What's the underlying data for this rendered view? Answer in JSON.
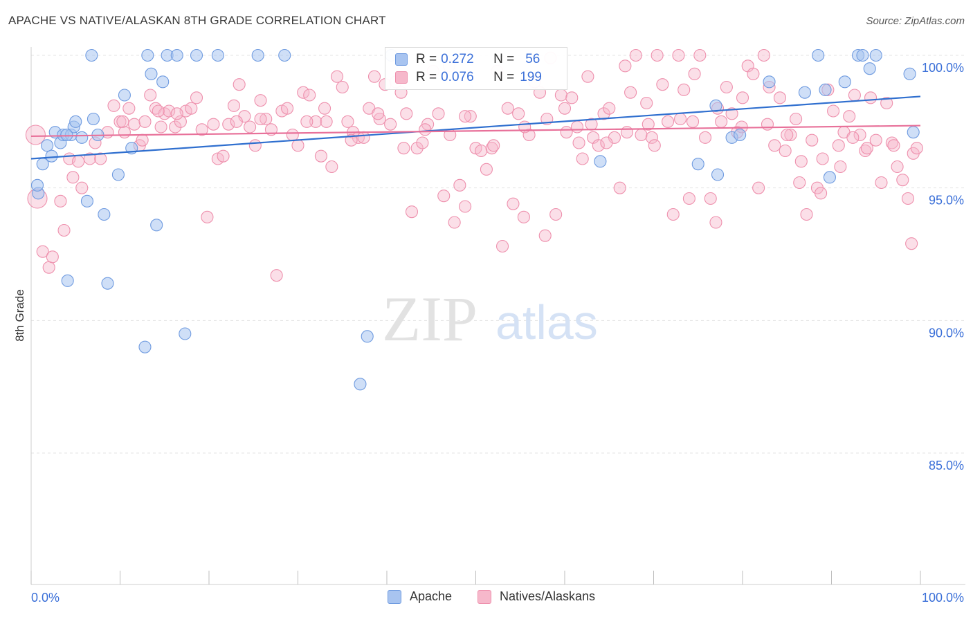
{
  "title": "APACHE VS NATIVE/ALASKAN 8TH GRADE CORRELATION CHART",
  "source": "Source: ZipAtlas.com",
  "watermark": {
    "zip": "ZIP",
    "atlas": "atlas"
  },
  "legend": {
    "rows": [
      {
        "r_label": "R =",
        "r_value": "0.272",
        "n_label": "N =",
        "n_value": "56"
      },
      {
        "r_label": "R =",
        "r_value": "0.076",
        "n_label": "N =",
        "n_value": "199"
      }
    ]
  },
  "bottom_legend": {
    "apache": "Apache",
    "natives": "Natives/Alaskans"
  },
  "colors": {
    "apache_fill": "#a8c4f0",
    "apache_stroke": "#6f9be0",
    "apache_line": "#2f6fcf",
    "natives_fill": "#f6b8cb",
    "natives_stroke": "#ee90ad",
    "natives_line": "#e8719a",
    "tick_label": "#3a6fd8",
    "grid": "#e3e3e3"
  },
  "chart_data": {
    "type": "scatter",
    "title": "APACHE VS NATIVE/ALASKAN 8TH GRADE CORRELATION CHART",
    "ylabel": "8th Grade",
    "xlabel": "",
    "x_tick_labels": [
      "0.0%",
      "100.0%"
    ],
    "y_tick_labels": [
      "100.0%",
      "95.0%",
      "90.0%",
      "85.0%"
    ],
    "y_ticks": [
      100,
      95,
      90,
      85
    ],
    "xlim": [
      0,
      100
    ],
    "ylim": [
      80.5,
      101
    ],
    "grid": true,
    "legend_position": "top-center",
    "series": [
      {
        "name": "Apache",
        "R": 0.272,
        "N": 56,
        "trend": {
          "x0": 0,
          "y0": 96.1,
          "x1": 100,
          "y1": 98.45
        },
        "points": [
          [
            0.8,
            94.8
          ],
          [
            0.7,
            95.1
          ],
          [
            1.3,
            95.9
          ],
          [
            1.8,
            96.6
          ],
          [
            2.3,
            96.2
          ],
          [
            2.7,
            97.1
          ],
          [
            3.3,
            96.7
          ],
          [
            3.6,
            97.0
          ],
          [
            4.5,
            97.0
          ],
          [
            4.8,
            97.3
          ],
          [
            5.0,
            97.5
          ],
          [
            5.7,
            96.9
          ],
          [
            6.3,
            94.5
          ],
          [
            7.0,
            97.6
          ],
          [
            7.5,
            97.0
          ],
          [
            8.2,
            94.0
          ],
          [
            8.6,
            91.4
          ],
          [
            9.8,
            95.5
          ],
          [
            10.5,
            98.5
          ],
          [
            11.3,
            96.5
          ],
          [
            12.8,
            89.0
          ],
          [
            13.5,
            99.3
          ],
          [
            14.1,
            93.6
          ],
          [
            14.8,
            99.0
          ],
          [
            17.3,
            89.5
          ],
          [
            21.0,
            100.0
          ],
          [
            25.5,
            100.0
          ],
          [
            28.5,
            100.0
          ],
          [
            37.8,
            89.4
          ],
          [
            37.0,
            87.6
          ],
          [
            40.5,
            100.0
          ],
          [
            6.8,
            100.0
          ],
          [
            13.1,
            100.0
          ],
          [
            15.3,
            100.0
          ],
          [
            16.4,
            100.0
          ],
          [
            18.6,
            100.0
          ],
          [
            4.1,
            91.5
          ],
          [
            64.0,
            96.0
          ],
          [
            75.0,
            95.9
          ],
          [
            77.0,
            98.1
          ],
          [
            78.8,
            96.9
          ],
          [
            79.7,
            97.0
          ],
          [
            83.0,
            99.0
          ],
          [
            87.0,
            98.6
          ],
          [
            88.5,
            100.0
          ],
          [
            89.3,
            98.7
          ],
          [
            89.8,
            95.4
          ],
          [
            91.5,
            99.0
          ],
          [
            93.0,
            100.0
          ],
          [
            93.5,
            100.0
          ],
          [
            94.3,
            99.5
          ],
          [
            95.0,
            100.0
          ],
          [
            98.8,
            99.3
          ],
          [
            99.2,
            97.1
          ],
          [
            77.2,
            95.5
          ],
          [
            4.0,
            97.0
          ]
        ]
      },
      {
        "name": "Natives/Alaskans",
        "R": 0.076,
        "N": 199,
        "trend": {
          "x0": 0,
          "y0": 96.95,
          "x1": 100,
          "y1": 97.35
        },
        "points": [
          [
            0.5,
            97.0
          ],
          [
            0.7,
            94.6
          ],
          [
            1.3,
            92.6
          ],
          [
            2.0,
            92.0
          ],
          [
            2.4,
            92.4
          ],
          [
            3.3,
            94.5
          ],
          [
            3.7,
            93.4
          ],
          [
            4.3,
            96.1
          ],
          [
            4.7,
            95.4
          ],
          [
            5.3,
            96.0
          ],
          [
            5.7,
            95.0
          ],
          [
            6.6,
            96.1
          ],
          [
            7.2,
            96.7
          ],
          [
            7.8,
            96.1
          ],
          [
            8.6,
            97.1
          ],
          [
            9.3,
            98.1
          ],
          [
            10.0,
            97.5
          ],
          [
            10.5,
            97.1
          ],
          [
            11.0,
            98.0
          ],
          [
            11.6,
            97.4
          ],
          [
            12.2,
            96.6
          ],
          [
            12.8,
            97.5
          ],
          [
            13.4,
            98.5
          ],
          [
            14.0,
            98.0
          ],
          [
            14.6,
            97.3
          ],
          [
            15.0,
            97.8
          ],
          [
            15.5,
            97.9
          ],
          [
            16.2,
            97.3
          ],
          [
            16.8,
            97.5
          ],
          [
            17.4,
            97.9
          ],
          [
            18.0,
            98.0
          ],
          [
            18.6,
            98.4
          ],
          [
            19.2,
            97.2
          ],
          [
            19.8,
            93.9
          ],
          [
            20.5,
            97.4
          ],
          [
            21.0,
            96.1
          ],
          [
            21.6,
            96.2
          ],
          [
            22.2,
            97.4
          ],
          [
            22.8,
            98.1
          ],
          [
            23.4,
            98.9
          ],
          [
            24.0,
            97.7
          ],
          [
            24.6,
            97.3
          ],
          [
            25.2,
            96.6
          ],
          [
            25.8,
            98.3
          ],
          [
            26.4,
            97.6
          ],
          [
            27.0,
            97.2
          ],
          [
            27.6,
            91.7
          ],
          [
            28.2,
            97.9
          ],
          [
            28.8,
            98.0
          ],
          [
            29.4,
            97.0
          ],
          [
            30.0,
            96.6
          ],
          [
            30.6,
            98.6
          ],
          [
            31.3,
            98.5
          ],
          [
            32.0,
            97.5
          ],
          [
            32.6,
            96.2
          ],
          [
            33.2,
            97.5
          ],
          [
            33.8,
            95.8
          ],
          [
            34.4,
            99.2
          ],
          [
            35.0,
            98.8
          ],
          [
            35.6,
            97.5
          ],
          [
            36.2,
            97.1
          ],
          [
            36.8,
            96.9
          ],
          [
            37.4,
            96.9
          ],
          [
            38.0,
            98.0
          ],
          [
            38.6,
            99.2
          ],
          [
            39.2,
            97.6
          ],
          [
            39.8,
            98.9
          ],
          [
            40.4,
            97.4
          ],
          [
            41.0,
            99.0
          ],
          [
            41.6,
            98.6
          ],
          [
            42.2,
            97.8
          ],
          [
            42.8,
            94.1
          ],
          [
            43.4,
            96.5
          ],
          [
            44.0,
            96.7
          ],
          [
            44.6,
            97.4
          ],
          [
            45.2,
            99.4
          ],
          [
            45.8,
            97.8
          ],
          [
            46.4,
            94.7
          ],
          [
            47.0,
            99.6
          ],
          [
            47.6,
            93.7
          ],
          [
            48.2,
            95.1
          ],
          [
            48.8,
            94.3
          ],
          [
            49.4,
            97.7
          ],
          [
            50.0,
            96.5
          ],
          [
            50.6,
            96.4
          ],
          [
            51.2,
            95.7
          ],
          [
            51.8,
            96.5
          ],
          [
            52.4,
            99.4
          ],
          [
            53.0,
            92.8
          ],
          [
            53.6,
            98.0
          ],
          [
            54.2,
            94.4
          ],
          [
            54.8,
            97.8
          ],
          [
            55.4,
            93.9
          ],
          [
            56.0,
            97.0
          ],
          [
            56.6,
            99.0
          ],
          [
            57.2,
            98.6
          ],
          [
            57.8,
            93.2
          ],
          [
            58.4,
            99.9
          ],
          [
            59.0,
            94.0
          ],
          [
            59.6,
            98.5
          ],
          [
            60.2,
            97.1
          ],
          [
            60.8,
            98.4
          ],
          [
            61.4,
            97.3
          ],
          [
            62.0,
            96.1
          ],
          [
            62.6,
            99.2
          ],
          [
            63.2,
            96.9
          ],
          [
            63.8,
            96.6
          ],
          [
            64.4,
            97.8
          ],
          [
            65.0,
            98.0
          ],
          [
            65.6,
            96.9
          ],
          [
            66.2,
            95.0
          ],
          [
            66.8,
            99.6
          ],
          [
            67.4,
            98.6
          ],
          [
            68.0,
            100.0
          ],
          [
            68.6,
            97.0
          ],
          [
            69.2,
            98.2
          ],
          [
            69.8,
            96.9
          ],
          [
            70.4,
            100.0
          ],
          [
            71.0,
            98.9
          ],
          [
            71.6,
            97.5
          ],
          [
            72.2,
            94.0
          ],
          [
            72.8,
            100.0
          ],
          [
            73.4,
            98.7
          ],
          [
            74.0,
            94.6
          ],
          [
            74.6,
            99.3
          ],
          [
            75.2,
            100.0
          ],
          [
            75.8,
            96.9
          ],
          [
            76.4,
            94.6
          ],
          [
            77.0,
            93.7
          ],
          [
            77.6,
            97.5
          ],
          [
            78.2,
            98.8
          ],
          [
            78.8,
            97.8
          ],
          [
            79.4,
            97.1
          ],
          [
            80.0,
            98.4
          ],
          [
            80.6,
            99.6
          ],
          [
            81.2,
            99.3
          ],
          [
            81.8,
            95.0
          ],
          [
            82.4,
            100.0
          ],
          [
            83.0,
            98.8
          ],
          [
            83.6,
            96.6
          ],
          [
            84.2,
            98.4
          ],
          [
            84.8,
            96.4
          ],
          [
            85.4,
            97.0
          ],
          [
            86.0,
            97.6
          ],
          [
            86.6,
            96.0
          ],
          [
            87.2,
            94.0
          ],
          [
            87.8,
            96.8
          ],
          [
            88.4,
            95.0
          ],
          [
            89.0,
            96.1
          ],
          [
            89.6,
            98.7
          ],
          [
            90.2,
            97.9
          ],
          [
            90.8,
            96.6
          ],
          [
            91.4,
            97.1
          ],
          [
            92.0,
            97.7
          ],
          [
            92.6,
            98.5
          ],
          [
            93.2,
            97.0
          ],
          [
            93.8,
            96.4
          ],
          [
            94.4,
            98.4
          ],
          [
            95.0,
            96.8
          ],
          [
            95.6,
            95.2
          ],
          [
            96.2,
            98.2
          ],
          [
            96.8,
            96.7
          ],
          [
            97.4,
            95.8
          ],
          [
            98.0,
            95.3
          ],
          [
            98.6,
            94.6
          ],
          [
            99.2,
            96.3
          ],
          [
            99.6,
            96.5
          ],
          [
            99.0,
            92.9
          ],
          [
            97.0,
            96.6
          ],
          [
            94.0,
            96.5
          ],
          [
            92.4,
            96.9
          ],
          [
            91.0,
            95.8
          ],
          [
            88.8,
            94.8
          ],
          [
            86.4,
            95.2
          ],
          [
            10.3,
            97.5
          ],
          [
            12.5,
            96.8
          ],
          [
            14.3,
            97.9
          ],
          [
            16.4,
            97.8
          ],
          [
            23.1,
            97.5
          ],
          [
            25.8,
            97.6
          ],
          [
            31.0,
            97.5
          ],
          [
            33.0,
            98.0
          ],
          [
            36.0,
            96.8
          ],
          [
            39.0,
            97.8
          ],
          [
            41.9,
            96.5
          ],
          [
            44.3,
            97.2
          ],
          [
            47.1,
            97.0
          ],
          [
            48.8,
            97.7
          ],
          [
            52.0,
            96.6
          ],
          [
            55.5,
            97.3
          ],
          [
            58.0,
            97.6
          ],
          [
            60.0,
            98.0
          ],
          [
            61.6,
            96.7
          ],
          [
            63.0,
            97.4
          ],
          [
            64.7,
            96.7
          ],
          [
            67.0,
            97.1
          ],
          [
            69.4,
            97.4
          ],
          [
            70.1,
            96.6
          ],
          [
            73.0,
            97.6
          ],
          [
            74.4,
            97.5
          ],
          [
            77.2,
            98.0
          ],
          [
            79.9,
            97.3
          ],
          [
            82.8,
            97.4
          ],
          [
            85.0,
            97.0
          ]
        ]
      }
    ]
  }
}
